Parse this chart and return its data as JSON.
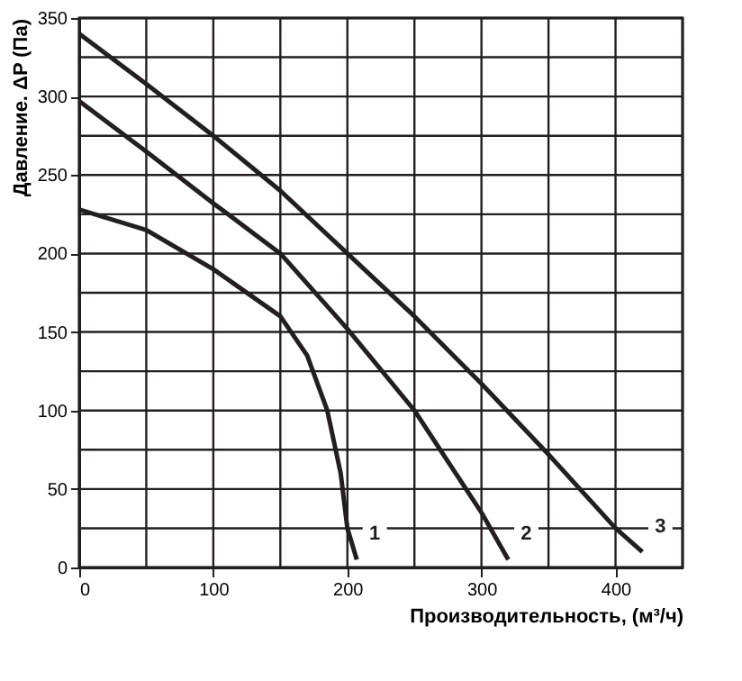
{
  "chart_data": {
    "type": "line",
    "xlabel": "Производительность, (м³/ч)",
    "ylabel": "Давление. ΔP (Па)",
    "xlim": [
      0,
      450
    ],
    "ylim": [
      0,
      350
    ],
    "xticks": [
      0,
      {
        "value": 50,
        "label": null
      },
      100,
      {
        "value": 150,
        "label": null
      },
      200,
      {
        "value": 250,
        "label": null
      },
      300,
      {
        "value": 350,
        "label": null
      },
      400,
      {
        "value": 450,
        "label": null
      }
    ],
    "yticks": [
      0,
      {
        "value": 25,
        "label": null
      },
      50,
      {
        "value": 75,
        "label": null
      },
      100,
      {
        "value": 125,
        "label": null
      },
      150,
      {
        "value": 175,
        "label": null
      },
      200,
      {
        "value": 225,
        "label": null
      },
      250,
      {
        "value": 275,
        "label": null
      },
      300,
      {
        "value": 325,
        "label": null
      },
      350
    ],
    "grid": true,
    "line_style": "solid",
    "marker": "none",
    "series": [
      {
        "name": "1",
        "color": "#231f20",
        "x": [
          0,
          50,
          100,
          150,
          170,
          185,
          195,
          200,
          207
        ],
        "values": [
          228,
          215,
          190,
          160,
          135,
          100,
          60,
          25,
          5
        ]
      },
      {
        "name": "2",
        "color": "#231f20",
        "x": [
          0,
          50,
          100,
          150,
          200,
          250,
          300,
          320
        ],
        "values": [
          297,
          265,
          232,
          200,
          152,
          100,
          35,
          5
        ]
      },
      {
        "name": "3",
        "color": "#231f20",
        "x": [
          0,
          50,
          100,
          150,
          200,
          250,
          300,
          350,
          400,
          420
        ],
        "values": [
          340,
          308,
          275,
          240,
          200,
          160,
          117,
          72,
          25,
          10
        ]
      }
    ]
  }
}
